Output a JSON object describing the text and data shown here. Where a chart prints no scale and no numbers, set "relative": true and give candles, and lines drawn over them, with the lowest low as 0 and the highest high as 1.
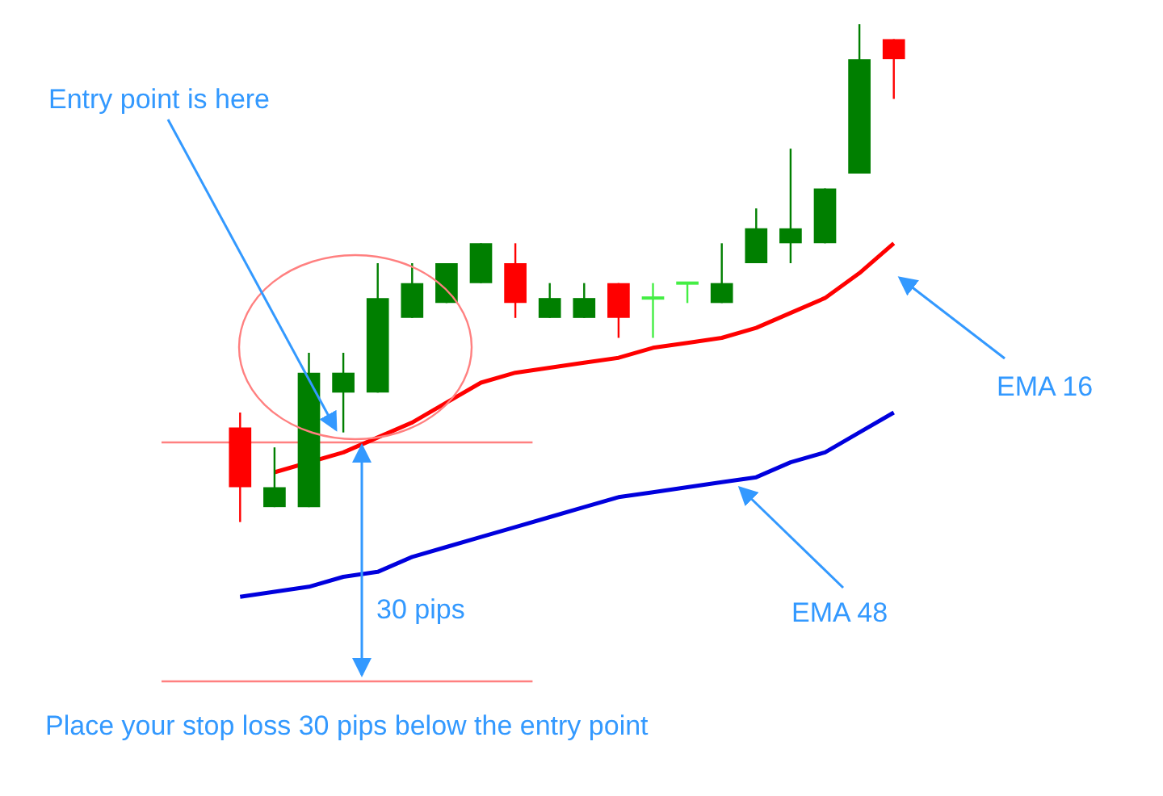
{
  "chart_data": {
    "type": "candlestick",
    "relative": true,
    "categories": [
      null,
      null,
      null,
      null,
      null,
      null,
      null,
      null,
      null,
      null,
      null,
      null,
      null,
      null,
      null,
      null,
      null,
      null,
      null,
      null
    ],
    "ohlc": [
      [
        0.19,
        0.22,
        0,
        0.07
      ],
      [
        0.03,
        0.15,
        0.03,
        0.07
      ],
      [
        0.03,
        0.34,
        0.03,
        0.3
      ],
      [
        0.26,
        0.34,
        0.18,
        0.3
      ],
      [
        0.26,
        0.52,
        0.26,
        0.45
      ],
      [
        0.41,
        0.52,
        0.41,
        0.48
      ],
      [
        0.44,
        0.52,
        0.44,
        0.52
      ],
      [
        0.48,
        0.56,
        0.48,
        0.56
      ],
      [
        0.52,
        0.56,
        0.41,
        0.44
      ],
      [
        0.41,
        0.48,
        0.41,
        0.45
      ],
      [
        0.41,
        0.48,
        0.41,
        0.45
      ],
      [
        0.48,
        0.48,
        0.37,
        0.41
      ],
      [
        0.45,
        0.48,
        0.37,
        0.45
      ],
      [
        0.48,
        0.48,
        0.44,
        0.48
      ],
      [
        0.44,
        0.56,
        0.44,
        0.48
      ],
      [
        0.52,
        0.63,
        0.52,
        0.59
      ],
      [
        0.56,
        0.75,
        0.52,
        0.59
      ],
      [
        0.56,
        0.67,
        0.56,
        0.67
      ],
      [
        0.7,
        1,
        0.7,
        0.93
      ],
      [
        0.97,
        0.97,
        0.85,
        0.93
      ]
    ],
    "colors": [
      "#ff0000",
      "#007f00",
      "#007f00",
      "#007f00",
      "#007f00",
      "#007f00",
      "#007f00",
      "#007f00",
      "#ff0000",
      "#007f00",
      "#007f00",
      "#ff0000",
      "#44ee44",
      "#44ee44",
      "#007f00",
      "#007f00",
      "#007f00",
      "#007f00",
      "#007f00",
      "#ff0000"
    ],
    "series": [
      {
        "type": "line",
        "color": "#ff0000",
        "values": [
          null,
          0.1,
          null,
          0.14,
          0.17,
          0.2,
          0.24,
          0.28,
          0.3,
          0.31,
          0.32,
          0.33,
          0.35,
          0.36,
          0.37,
          0.39,
          0.42,
          0.45,
          0.5,
          0.56
        ]
      },
      {
        "type": "line",
        "color": "#0000dd",
        "values": [
          -0.15,
          -0.14,
          -0.13,
          -0.11,
          -0.1,
          -0.07,
          -0.05,
          -0.03,
          -0.01,
          0.01,
          0.03,
          0.05,
          0.06,
          0.07,
          0.08,
          0.09,
          0.12,
          0.14,
          0.18,
          0.22
        ]
      }
    ],
    "ref_lines": [
      {
        "axis": "y",
        "value": 0.16,
        "color": "#ff8080"
      },
      {
        "axis": "y",
        "value": -0.32,
        "color": "#ff8080"
      }
    ],
    "annotations": [
      "Entry point is here",
      "30 pips",
      "Place your stop loss 30 pips below the entry point",
      "EMA 16",
      "EMA 48"
    ]
  }
}
